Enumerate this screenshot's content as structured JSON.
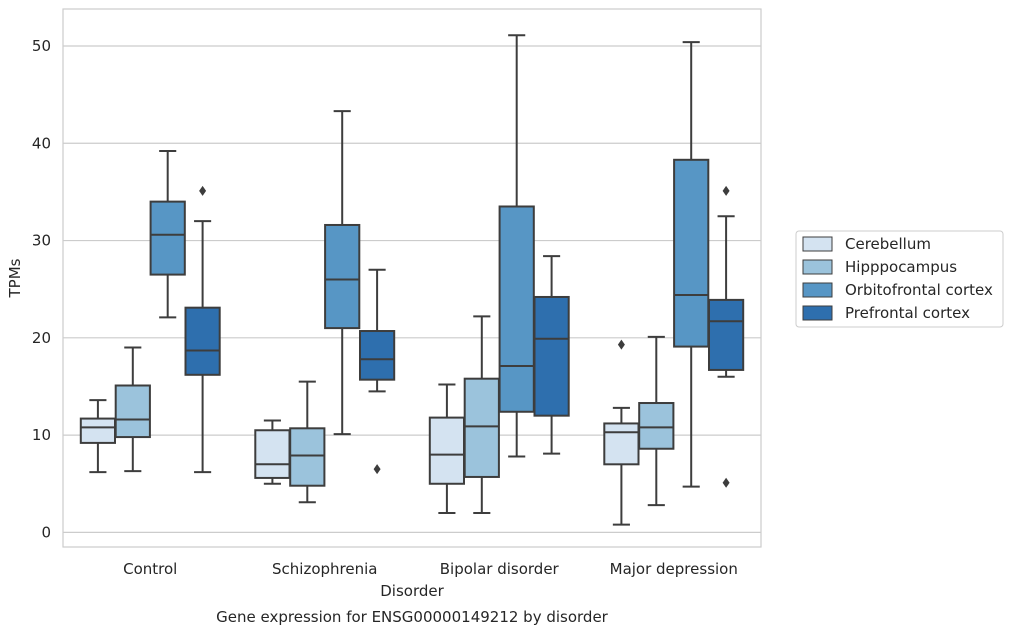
{
  "chart_data": {
    "type": "box",
    "caption": "Gene expression for ENSG00000149212 by disorder",
    "xlabel": "Disorder",
    "ylabel": "TPMs",
    "ylim": [
      -1.5,
      53.8
    ],
    "yticks": [
      0,
      10,
      20,
      30,
      40,
      50
    ],
    "grid": "horizontal",
    "legend_position": "center-right",
    "categories": [
      "Control",
      "Schizophrenia",
      "Bipolar disorder",
      "Major depression"
    ],
    "series": [
      {
        "name": "Cerebellum",
        "color": "#d4e3f1",
        "boxes": [
          {
            "whislo": 6.2,
            "q1": 9.2,
            "med": 10.8,
            "q3": 11.7,
            "whishi": 13.6,
            "fliers": []
          },
          {
            "whislo": 5.0,
            "q1": 5.6,
            "med": 7.0,
            "q3": 10.5,
            "whishi": 11.5,
            "fliers": []
          },
          {
            "whislo": 2.0,
            "q1": 5.0,
            "med": 8.0,
            "q3": 11.8,
            "whishi": 15.2,
            "fliers": []
          },
          {
            "whislo": 0.8,
            "q1": 7.0,
            "med": 10.3,
            "q3": 11.2,
            "whishi": 12.8,
            "fliers": [
              19.3
            ]
          }
        ]
      },
      {
        "name": "Hipppocampus",
        "color": "#9bc3dc",
        "boxes": [
          {
            "whislo": 6.3,
            "q1": 9.8,
            "med": 11.6,
            "q3": 15.1,
            "whishi": 19.0,
            "fliers": []
          },
          {
            "whislo": 3.1,
            "q1": 4.8,
            "med": 7.9,
            "q3": 10.7,
            "whishi": 15.5,
            "fliers": []
          },
          {
            "whislo": 2.0,
            "q1": 5.7,
            "med": 10.9,
            "q3": 15.8,
            "whishi": 22.2,
            "fliers": []
          },
          {
            "whislo": 2.8,
            "q1": 8.6,
            "med": 10.8,
            "q3": 13.3,
            "whishi": 20.1,
            "fliers": []
          }
        ]
      },
      {
        "name": "Orbitofrontal cortex",
        "color": "#5796c5",
        "boxes": [
          {
            "whislo": 22.1,
            "q1": 26.5,
            "med": 30.6,
            "q3": 34.0,
            "whishi": 39.2,
            "fliers": []
          },
          {
            "whislo": 10.1,
            "q1": 21.0,
            "med": 26.0,
            "q3": 31.6,
            "whishi": 43.3,
            "fliers": []
          },
          {
            "whislo": 7.8,
            "q1": 12.4,
            "med": 17.1,
            "q3": 33.5,
            "whishi": 51.1,
            "fliers": []
          },
          {
            "whislo": 4.7,
            "q1": 19.1,
            "med": 24.4,
            "q3": 38.3,
            "whishi": 50.4,
            "fliers": []
          }
        ]
      },
      {
        "name": "Prefrontal cortex",
        "color": "#2e6fae",
        "boxes": [
          {
            "whislo": 6.2,
            "q1": 16.2,
            "med": 18.7,
            "q3": 23.1,
            "whishi": 32.0,
            "fliers": [
              35.1
            ]
          },
          {
            "whislo": 14.5,
            "q1": 15.7,
            "med": 17.8,
            "q3": 20.7,
            "whishi": 27.0,
            "fliers": [
              6.5
            ]
          },
          {
            "whislo": 8.1,
            "q1": 12.0,
            "med": 19.9,
            "q3": 24.2,
            "whishi": 28.4,
            "fliers": []
          },
          {
            "whislo": 16.0,
            "q1": 16.7,
            "med": 21.7,
            "q3": 23.9,
            "whishi": 32.5,
            "fliers": [
              35.1,
              5.1
            ]
          }
        ]
      }
    ]
  }
}
